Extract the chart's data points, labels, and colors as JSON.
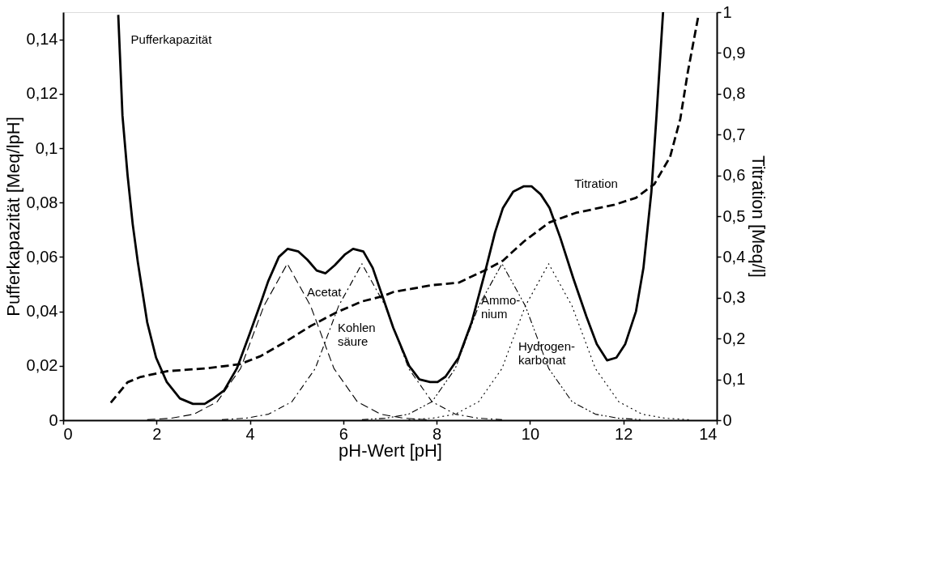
{
  "chart_data": {
    "type": "line",
    "xlabel": "pH-Wert [pH]",
    "ylabel": "Pufferkapazität [Meq/lpH]",
    "y2label": "Titration [Meq/l]",
    "xlim": [
      0,
      14
    ],
    "xticks": [
      0,
      2,
      4,
      6,
      8,
      10,
      12,
      14
    ],
    "ylim": [
      0,
      0.15
    ],
    "yticks": [
      0,
      {
        "value": 0.02,
        "label": "0,02"
      },
      {
        "value": 0.04,
        "label": "0,04"
      },
      {
        "value": 0.06,
        "label": "0,06"
      },
      {
        "value": 0.08,
        "label": "0,08"
      },
      {
        "value": 0.1,
        "label": "0,1"
      },
      {
        "value": 0.12,
        "label": "0,12"
      },
      {
        "value": 0.14,
        "label": "0,14"
      }
    ],
    "y2lim": [
      0,
      1
    ],
    "y2ticks": [
      0,
      {
        "value": 0.1,
        "label": "0,1"
      },
      {
        "value": 0.2,
        "label": "0,2"
      },
      {
        "value": 0.3,
        "label": "0,3"
      },
      {
        "value": 0.4,
        "label": "0,4"
      },
      {
        "value": 0.5,
        "label": "0,5"
      },
      {
        "value": 0.6,
        "label": "0,6"
      },
      {
        "value": 0.7,
        "label": "0,7"
      },
      {
        "value": 0.8,
        "label": "0,8"
      },
      {
        "value": 0.9,
        "label": "0,9"
      },
      1
    ],
    "grid": false,
    "legend": false,
    "marker": "none",
    "series": [
      {
        "name": "Pufferkapazität",
        "color": "#000000",
        "line_style": "solid",
        "x": [
          1.18,
          1.27,
          1.38,
          1.49,
          1.6,
          1.8,
          1.99,
          2.22,
          2.5,
          2.78,
          3.03,
          3.22,
          3.45,
          3.72,
          4.0,
          4.23,
          4.39,
          4.62,
          4.81,
          5.04,
          5.23,
          5.43,
          5.62,
          5.82,
          6.04,
          6.21,
          6.43,
          6.63,
          6.85,
          7.07,
          7.41,
          7.63,
          7.86,
          8.02,
          8.19,
          8.47,
          8.75,
          9.03,
          9.25,
          9.42,
          9.64,
          9.87,
          10.03,
          10.23,
          10.42,
          10.65,
          10.93,
          11.21,
          11.43,
          11.65,
          11.85,
          12.04,
          12.27,
          12.43,
          12.6,
          12.71,
          12.85
        ],
        "values": [
          0.149,
          0.112,
          0.09,
          0.072,
          0.058,
          0.036,
          0.023,
          0.014,
          0.008,
          0.006,
          0.006,
          0.008,
          0.011,
          0.019,
          0.032,
          0.043,
          0.051,
          0.06,
          0.063,
          0.062,
          0.059,
          0.055,
          0.054,
          0.057,
          0.061,
          0.063,
          0.062,
          0.056,
          0.045,
          0.034,
          0.02,
          0.015,
          0.014,
          0.014,
          0.016,
          0.023,
          0.036,
          0.054,
          0.069,
          0.078,
          0.084,
          0.086,
          0.086,
          0.083,
          0.078,
          0.067,
          0.052,
          0.038,
          0.028,
          0.022,
          0.023,
          0.028,
          0.04,
          0.056,
          0.084,
          0.112,
          0.15
        ]
      },
      {
        "name": "Titration",
        "color": "#000000",
        "line_style": "dashed",
        "axis": "y2",
        "x": [
          1.02,
          1.38,
          1.66,
          2.22,
          3.05,
          3.78,
          4.23,
          4.73,
          5.29,
          5.85,
          6.4,
          6.85,
          7.07,
          7.91,
          8.47,
          9.03,
          9.42,
          9.87,
          10.42,
          10.98,
          11.81,
          12.27,
          12.66,
          13.0,
          13.22,
          13.38,
          13.61
        ],
        "values": [
          0.043,
          0.093,
          0.106,
          0.12,
          0.127,
          0.137,
          0.157,
          0.19,
          0.23,
          0.264,
          0.291,
          0.304,
          0.314,
          0.331,
          0.337,
          0.367,
          0.391,
          0.438,
          0.485,
          0.508,
          0.528,
          0.545,
          0.578,
          0.645,
          0.739,
          0.853,
          0.993
        ]
      },
      {
        "name": "Acetat",
        "color": "#000000",
        "line_style": "dashed",
        "x": [
          1.8,
          2.3,
          2.8,
          3.3,
          3.8,
          4.3,
          4.8,
          5.3,
          5.8,
          6.3,
          6.8,
          7.3,
          7.8
        ],
        "values": [
          0.0002,
          0.0007,
          0.0022,
          0.0068,
          0.019,
          0.042,
          0.0575,
          0.042,
          0.019,
          0.0068,
          0.0022,
          0.0007,
          0.0002
        ]
      },
      {
        "name": "Kohlen säure",
        "color": "#000000",
        "line_style": "dashdot",
        "x": [
          3.4,
          3.9,
          4.4,
          4.9,
          5.4,
          5.9,
          6.4,
          6.9,
          7.4,
          7.9,
          8.4,
          8.9,
          9.4
        ],
        "values": [
          0.0002,
          0.0007,
          0.0022,
          0.0068,
          0.019,
          0.042,
          0.0575,
          0.042,
          0.019,
          0.0068,
          0.0022,
          0.0007,
          0.0002
        ]
      },
      {
        "name": "Ammo- nium",
        "color": "#000000",
        "line_style": "dashdotdot",
        "x": [
          6.4,
          6.9,
          7.4,
          7.9,
          8.4,
          8.9,
          9.4,
          9.9,
          10.4,
          10.9,
          11.4,
          11.9,
          12.4
        ],
        "values": [
          0.0002,
          0.0007,
          0.0022,
          0.0068,
          0.019,
          0.042,
          0.0575,
          0.042,
          0.019,
          0.0068,
          0.0022,
          0.0007,
          0.0002
        ]
      },
      {
        "name": "Hydrogen- karbonat",
        "color": "#000000",
        "line_style": "dotted",
        "x": [
          7.4,
          7.9,
          8.4,
          8.9,
          9.4,
          9.9,
          10.4,
          10.9,
          11.4,
          11.9,
          12.4,
          12.9,
          13.4
        ],
        "values": [
          0.0002,
          0.0007,
          0.0022,
          0.0068,
          0.019,
          0.042,
          0.0575,
          0.042,
          0.019,
          0.0068,
          0.0022,
          0.0007,
          0.0002
        ]
      }
    ]
  }
}
